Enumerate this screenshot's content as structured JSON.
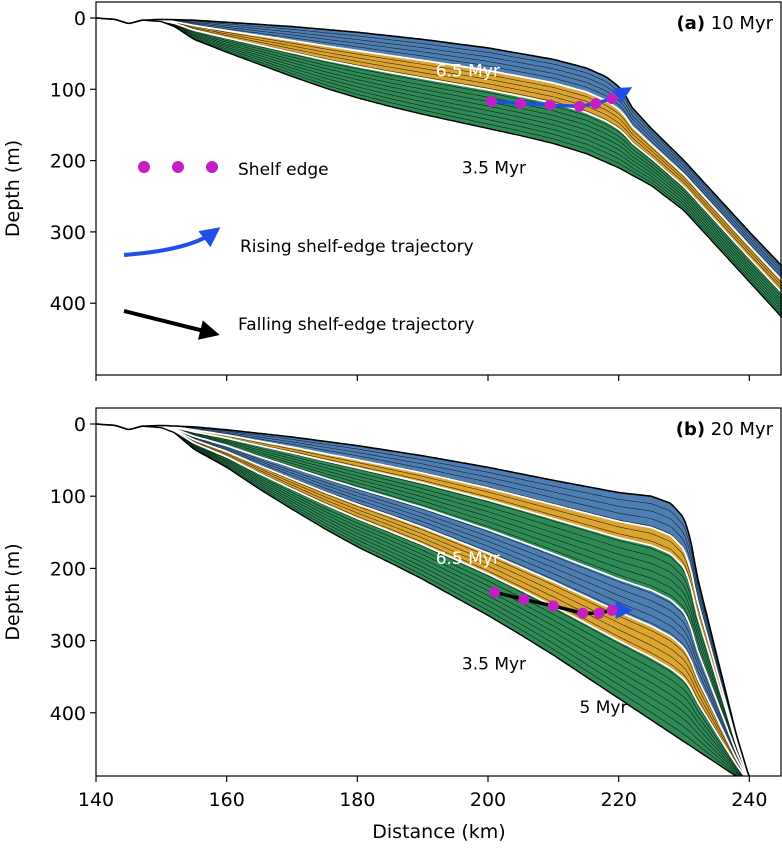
{
  "chart_data": {
    "type": "area",
    "xlabel": "Distance (km)",
    "ylabel": "Depth (m)",
    "xlim": [
      140,
      245
    ],
    "xticks": [
      140,
      160,
      180,
      200,
      220,
      240
    ],
    "colors": {
      "blue": "#4f7fb2",
      "yellow": "#dca531",
      "green": "#2f8a55",
      "shelf_edge": "#c41fc4",
      "rising": "#1f4fe6",
      "falling": "#000000"
    },
    "legend": {
      "shelf_edge": "Shelf edge",
      "rising": "Rising shelf-edge trajectory",
      "falling": "Falling shelf-edge trajectory"
    },
    "panels": [
      {
        "id": "a",
        "letter": "(a)",
        "label": "10 Myr",
        "ylim": [
          0,
          500
        ],
        "yticks": [
          0,
          100,
          200,
          300,
          400
        ],
        "annotations": [
          {
            "text": "6.5 Myr",
            "x": 192,
            "y": 82,
            "color": "#ffffff"
          },
          {
            "text": "3.5 Myr",
            "x": 196,
            "y": 218,
            "color": "#000000"
          }
        ],
        "shelf_edge_points": {
          "x": [
            200.5,
            205,
            209.5,
            214,
            216.5,
            219
          ],
          "y": [
            117,
            120,
            122,
            124,
            120,
            113
          ]
        },
        "basement": {
          "x": [
            140,
            143,
            145,
            147,
            150,
            152,
            155,
            160,
            165,
            170,
            175,
            180,
            185,
            190,
            195,
            200,
            205,
            210,
            215,
            220,
            225,
            230,
            235,
            240,
            245
          ],
          "y": [
            0,
            2,
            8,
            3,
            5,
            12,
            30,
            48,
            65,
            82,
            98,
            112,
            124,
            135,
            145,
            155,
            165,
            176,
            190,
            210,
            235,
            270,
            320,
            370,
            420
          ]
        },
        "top": {
          "x": [
            140,
            143,
            145,
            147,
            150,
            155,
            160,
            170,
            180,
            190,
            200,
            210,
            215,
            218,
            220,
            221,
            222,
            225,
            230,
            235,
            240,
            245
          ],
          "y": [
            0,
            2,
            8,
            3,
            2,
            3,
            6,
            12,
            20,
            30,
            42,
            58,
            70,
            82,
            96,
            108,
            125,
            155,
            200,
            250,
            300,
            348
          ]
        }
      },
      {
        "id": "b",
        "letter": "(b)",
        "label": "20 Myr",
        "ylim": [
          0,
          500
        ],
        "yticks": [
          0,
          100,
          200,
          300,
          400
        ],
        "annotations": [
          {
            "text": "6.5 Myr",
            "x": 192,
            "y": 194,
            "color": "#ffffff"
          },
          {
            "text": "3.5 Myr",
            "x": 196,
            "y": 340,
            "color": "#000000"
          },
          {
            "text": "5 Myr",
            "x": 214,
            "y": 400,
            "color": "#000000"
          }
        ],
        "shelf_edge_points": {
          "x": [
            201,
            205.5,
            210,
            214.5,
            217,
            219
          ],
          "y": [
            233,
            243,
            252,
            262,
            262,
            258
          ]
        },
        "basement": {
          "x": [
            140,
            143,
            145,
            147,
            150,
            152,
            155,
            160,
            165,
            170,
            175,
            180,
            185,
            190,
            195,
            200,
            205,
            210,
            215,
            220,
            225,
            230,
            235,
            240,
            241
          ],
          "y": [
            0,
            2,
            8,
            3,
            5,
            12,
            35,
            60,
            90,
            118,
            145,
            170,
            192,
            215,
            240,
            265,
            292,
            320,
            350,
            380,
            410,
            440,
            470,
            500,
            500
          ]
        },
        "top": {
          "x": [
            140,
            143,
            145,
            147,
            150,
            155,
            160,
            170,
            180,
            190,
            200,
            210,
            220,
            225,
            228,
            230,
            231,
            232,
            235,
            238,
            240,
            241
          ],
          "y": [
            0,
            2,
            8,
            3,
            2,
            4,
            8,
            18,
            30,
            44,
            60,
            78,
            95,
            100,
            110,
            130,
            160,
            210,
            320,
            430,
            490,
            500
          ]
        }
      }
    ]
  }
}
